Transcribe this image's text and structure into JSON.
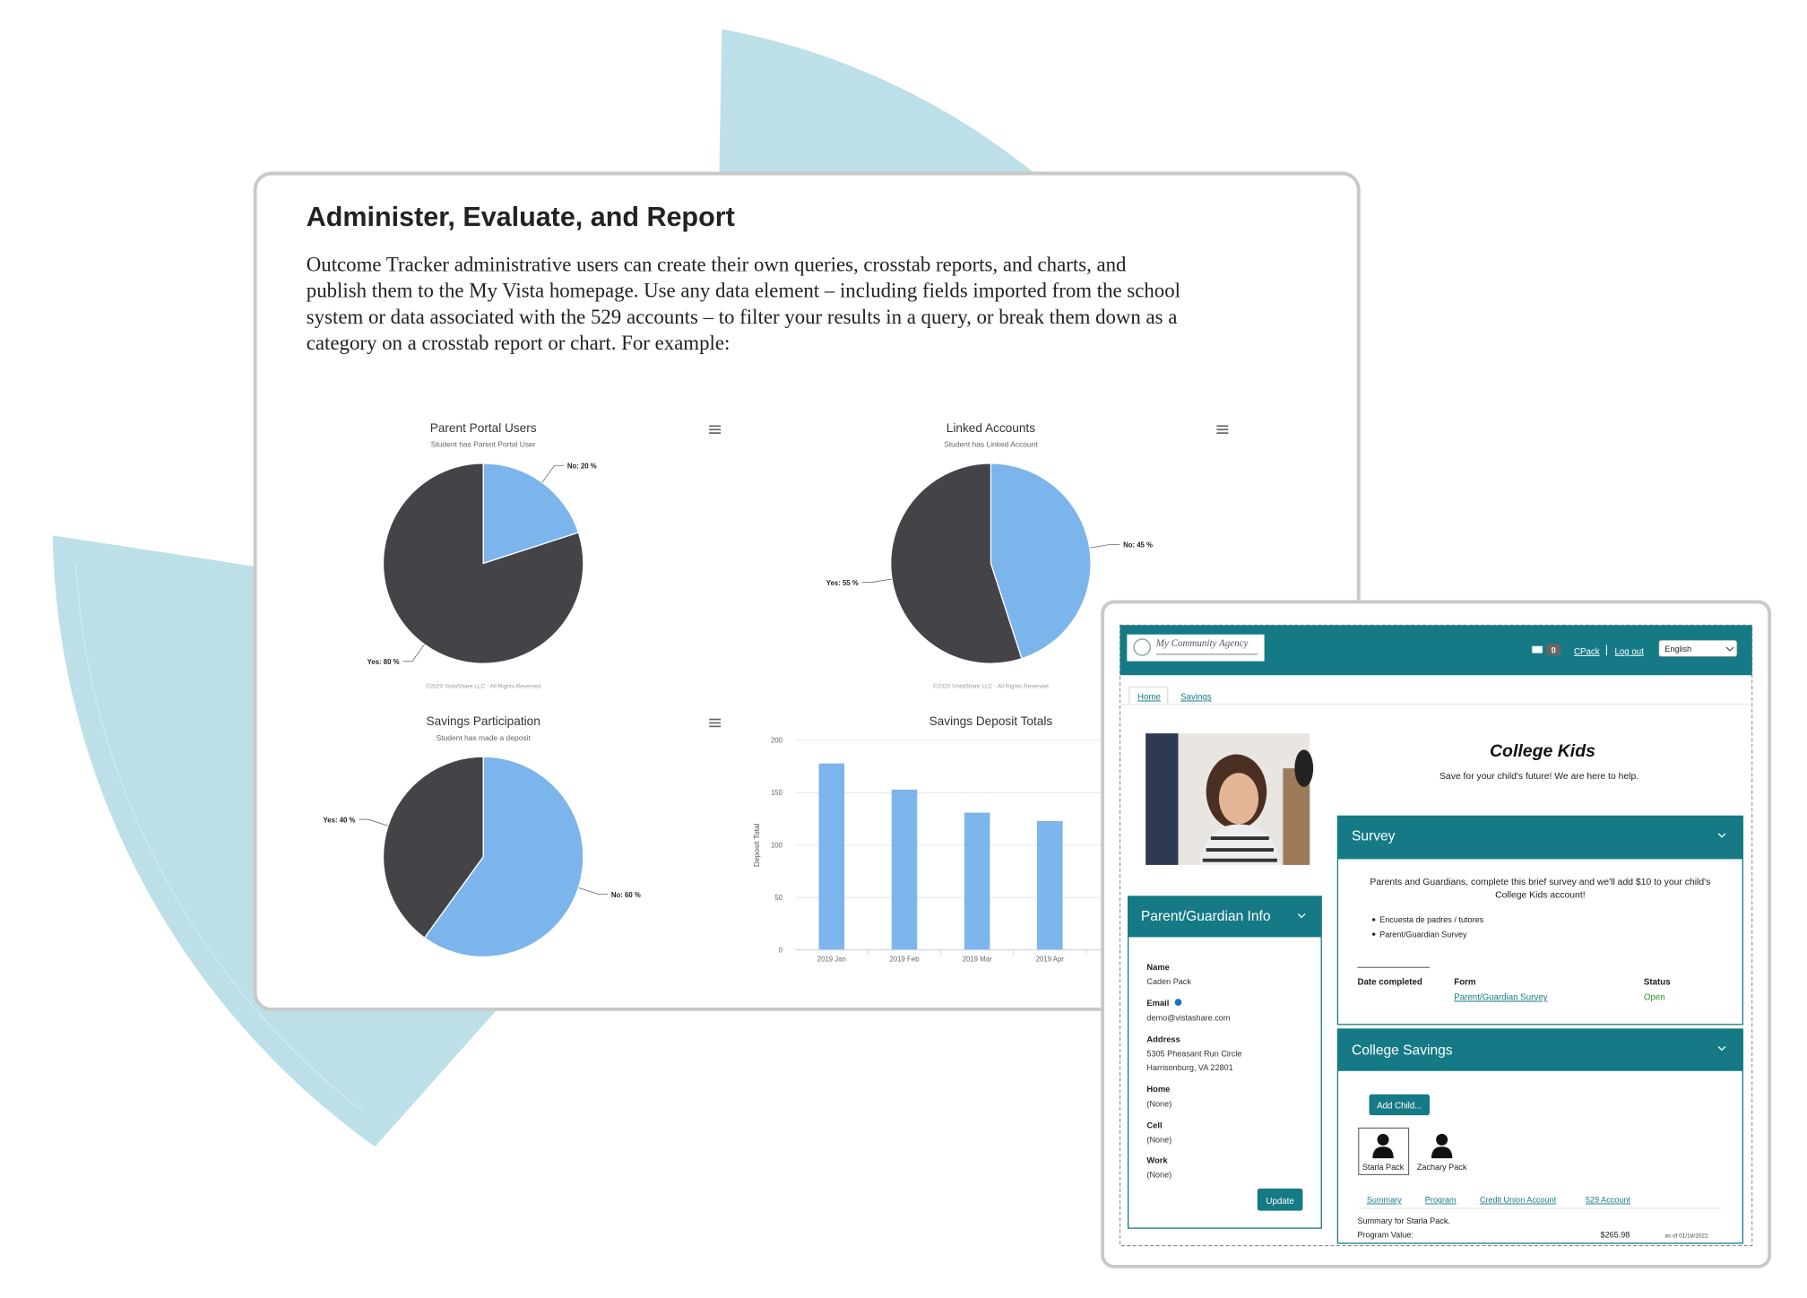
{
  "panel": {
    "title": "Administer, Evaluate, and Report",
    "body_lines": [
      "Outcome Tracker administrative users can create their own queries, crosstab reports, and charts, and",
      "publish them to the My Vista homepage. Use any data element – including fields imported from the school",
      "system or data associated with the 529 accounts – to filter your results in a query, or break them down as a",
      "category on a crosstab report or chart. For example:"
    ]
  },
  "charts": [
    {
      "type": "pie",
      "title": "Parent Portal Users",
      "subtitle": "Student has Parent Portal User",
      "values": [
        20,
        80
      ],
      "value_labels": [
        "No: 20 %",
        "Yes: 80 %"
      ],
      "colors": [
        "#7cb5ec",
        "#434348"
      ],
      "credits": "©2020 VistaShare LLC · All Rights Reserved"
    },
    {
      "type": "pie",
      "title": "Linked Accounts",
      "subtitle": "Student has Linked Account",
      "values": [
        45,
        55
      ],
      "value_labels": [
        "No: 45 %",
        "Yes: 55 %"
      ],
      "colors": [
        "#7cb5ec",
        "#434348"
      ],
      "credits": "©2020 VistaShare LLC · All Rights Reserved"
    },
    {
      "type": "pie",
      "title": "Savings Participation",
      "subtitle": "Student has made a deposit",
      "values": [
        60,
        40
      ],
      "value_labels": [
        "No: 60 %",
        "Yes: 40 %"
      ],
      "colors": [
        "#7cb5ec",
        "#434348"
      ]
    },
    {
      "type": "bar",
      "title": "Savings Deposit Totals",
      "y_label": "Deposit Total",
      "categories": [
        "2019 Jan",
        "2019 Feb",
        "2019 Mar",
        "2019 Apr"
      ],
      "values": [
        178,
        153,
        131,
        123
      ],
      "color": "#7cb5ec",
      "ylim": [
        0,
        200
      ],
      "yticks": [
        0,
        50,
        100,
        150,
        200
      ],
      "grid": true
    }
  ],
  "app": {
    "logo": "My Community Agency",
    "message_count": "0",
    "user": "CPack",
    "logout": "Log out",
    "language": "English",
    "breadcrumbs": [
      "Home",
      "Savings"
    ],
    "program": {
      "title": "College Kids",
      "tagline": "Save for your child's future!  We are here to help."
    },
    "survey": {
      "header": "Survey",
      "intro": "Parents and Guardians, complete this brief survey and we'll add $10 to your child's College Kids account!",
      "items": [
        "Encuesta de padres / tutores",
        "Parent/Guardian Survey"
      ],
      "columns": [
        "Date completed",
        "Form",
        "Status"
      ],
      "row": {
        "form": "Parent/Guardian Survey",
        "status": "Open"
      }
    },
    "guardian": {
      "header": "Parent/Guardian Info",
      "fields": [
        {
          "label": "Name",
          "value": [
            "Caden Pack"
          ]
        },
        {
          "label": "Email",
          "value": [
            "demo@vistashare.com"
          ]
        },
        {
          "label": "Address",
          "value": [
            "5305 Pheasant Run Circle",
            "Harrisonburg, VA 22801"
          ]
        },
        {
          "label": "Home",
          "value": [
            "(None)"
          ]
        },
        {
          "label": "Cell",
          "value": [
            "(None)"
          ]
        },
        {
          "label": "Work",
          "value": [
            "(None)"
          ]
        }
      ],
      "button": "Update"
    },
    "savings": {
      "header": "College Savings",
      "button": "Add Child...",
      "children": [
        "Starla Pack",
        "Zachary Pack"
      ],
      "tabs": [
        "Summary",
        "Program",
        "Credit Union Account",
        "529 Account"
      ],
      "summary": "Summary for Starla Pack.",
      "program_value_label": "Program Value:",
      "program_value": "$265.98",
      "as_of": "as of 01/18/2022"
    }
  }
}
